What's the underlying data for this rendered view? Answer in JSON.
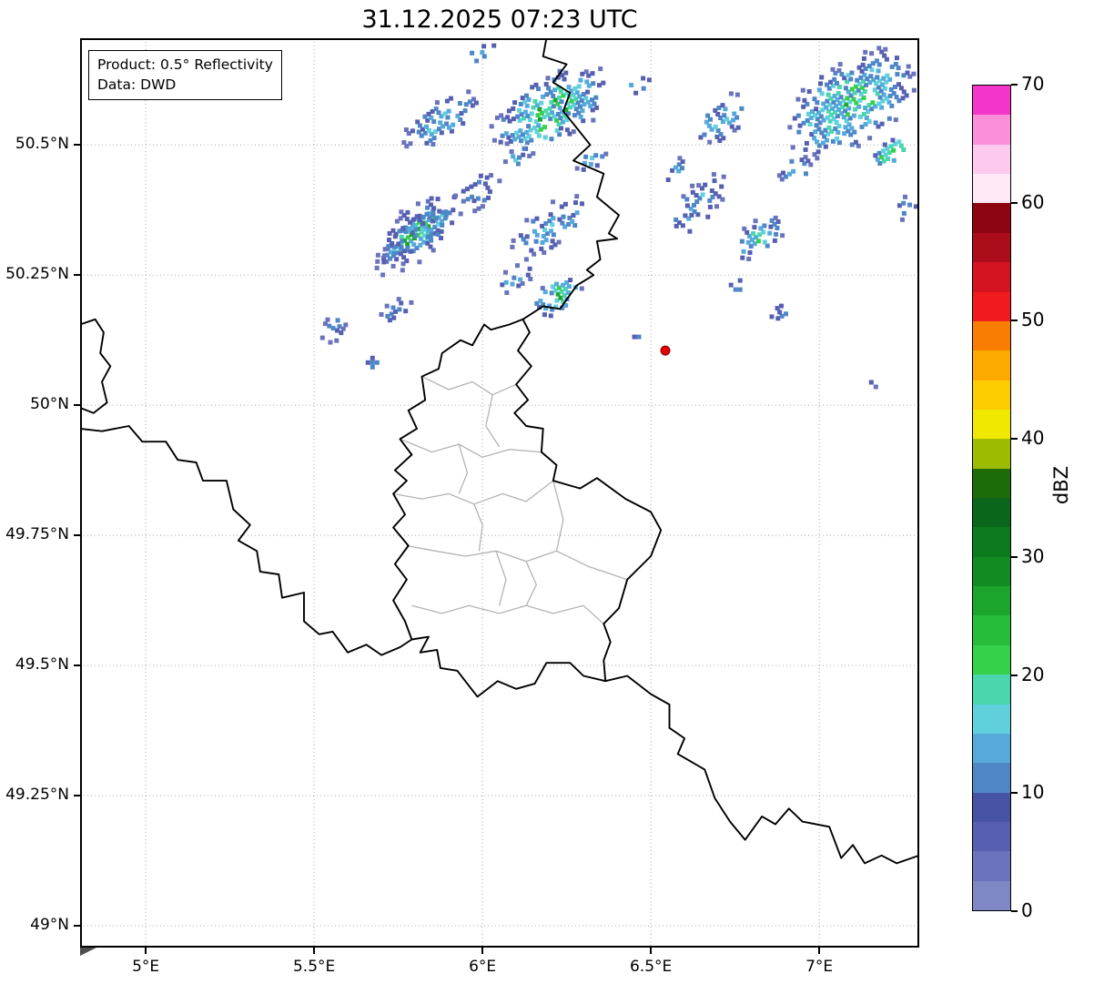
{
  "title": "31.12.2025 07:23 UTC",
  "info_box": {
    "lines": [
      "Product: 0.5° Reflectivity",
      "Data: DWD"
    ]
  },
  "colorbar": {
    "label": "dBZ",
    "min": 0,
    "max": 70,
    "ticks": [
      0,
      10,
      20,
      30,
      40,
      50,
      60,
      70
    ],
    "colors_bottom_to_top": [
      "#7f87c5",
      "#6a73bc",
      "#575fb1",
      "#4754a5",
      "#4f86c6",
      "#55aadb",
      "#5fd0dc",
      "#4bd6ae",
      "#36d14b",
      "#27bd3a",
      "#1ca52d",
      "#128b22",
      "#0d7a1e",
      "#0a661a",
      "#1e6b0a",
      "#9dbb00",
      "#f0e800",
      "#fccc00",
      "#fcaa00",
      "#f97e00",
      "#f11a1f",
      "#d41420",
      "#ad0d1a",
      "#8c0511",
      "#ffe9f7",
      "#fec9ee",
      "#fb8fd9",
      "#f336c9"
    ]
  },
  "colors": {
    "border": "#000000",
    "admin": "#b3b3b3",
    "grid": "#9a9a9a",
    "background": "#ffffff"
  },
  "map": {
    "extent": {
      "lon_min": 4.805,
      "lon_max": 7.297,
      "lat_min": 48.958,
      "lat_max": 50.705
    },
    "x_ticks": [
      {
        "value": 5.0,
        "label": "5°E"
      },
      {
        "value": 5.5,
        "label": "5.5°E"
      },
      {
        "value": 6.0,
        "label": "6°E"
      },
      {
        "value": 6.5,
        "label": "6.5°E"
      },
      {
        "value": 7.0,
        "label": "7°E"
      }
    ],
    "y_ticks": [
      {
        "value": 50.5,
        "label": "50.5°N"
      },
      {
        "value": 50.25,
        "label": "50.25°N"
      },
      {
        "value": 50.0,
        "label": "50°N"
      },
      {
        "value": 49.75,
        "label": "49.75°N"
      },
      {
        "value": 49.5,
        "label": "49.5°N"
      },
      {
        "value": 49.25,
        "label": "49.25°N"
      },
      {
        "value": 49.0,
        "label": "49°N"
      }
    ],
    "radar_site": {
      "lon": 6.543,
      "lat": 50.105,
      "color": "#e50000"
    },
    "borders_national": [
      [
        [
          6.19,
          50.705
        ],
        [
          6.18,
          50.67
        ],
        [
          6.25,
          50.655
        ],
        [
          6.21,
          50.62
        ],
        [
          6.26,
          50.6
        ],
        [
          6.24,
          50.565
        ],
        [
          6.32,
          50.5
        ],
        [
          6.27,
          50.47
        ],
        [
          6.36,
          50.445
        ],
        [
          6.34,
          50.4
        ],
        [
          6.405,
          50.365
        ],
        [
          6.375,
          50.33
        ],
        [
          6.4,
          50.32
        ],
        [
          6.34,
          50.315
        ],
        [
          6.35,
          50.28
        ],
        [
          6.31,
          50.26
        ],
        [
          6.33,
          50.25
        ],
        [
          6.28,
          50.23
        ],
        [
          6.23,
          50.185
        ],
        [
          6.18,
          50.19
        ],
        [
          6.12,
          50.165
        ]
      ],
      [
        [
          6.12,
          50.165
        ],
        [
          6.14,
          50.14
        ],
        [
          6.105,
          50.105
        ],
        [
          6.145,
          50.075
        ],
        [
          6.1,
          50.04
        ],
        [
          6.135,
          50.01
        ],
        [
          6.095,
          49.985
        ],
        [
          6.13,
          49.96
        ],
        [
          6.18,
          49.955
        ],
        [
          6.175,
          49.91
        ],
        [
          6.22,
          49.885
        ],
        [
          6.21,
          49.855
        ],
        [
          6.29,
          49.84
        ],
        [
          6.34,
          49.86
        ],
        [
          6.425,
          49.82
        ],
        [
          6.5,
          49.795
        ],
        [
          6.53,
          49.76
        ],
        [
          6.5,
          49.71
        ],
        [
          6.43,
          49.665
        ],
        [
          6.405,
          49.61
        ],
        [
          6.36,
          49.58
        ],
        [
          6.38,
          49.545
        ],
        [
          6.36,
          49.51
        ],
        [
          6.365,
          49.47
        ],
        [
          6.3,
          49.48
        ],
        [
          6.26,
          49.505
        ],
        [
          6.19,
          49.505
        ],
        [
          6.155,
          49.465
        ],
        [
          6.1,
          49.455
        ],
        [
          6.045,
          49.47
        ],
        [
          5.985,
          49.44
        ],
        [
          5.925,
          49.49
        ],
        [
          5.875,
          49.495
        ],
        [
          5.865,
          49.53
        ],
        [
          5.815,
          49.525
        ],
        [
          5.84,
          49.555
        ],
        [
          5.79,
          49.55
        ],
        [
          5.77,
          49.585
        ],
        [
          5.735,
          49.625
        ],
        [
          5.775,
          49.665
        ],
        [
          5.74,
          49.695
        ],
        [
          5.78,
          49.73
        ],
        [
          5.735,
          49.765
        ],
        [
          5.77,
          49.79
        ],
        [
          5.735,
          49.83
        ],
        [
          5.775,
          49.855
        ],
        [
          5.74,
          49.875
        ],
        [
          5.79,
          49.905
        ],
        [
          5.755,
          49.935
        ],
        [
          5.805,
          49.955
        ],
        [
          5.78,
          49.99
        ],
        [
          5.83,
          50.01
        ],
        [
          5.82,
          50.055
        ],
        [
          5.87,
          50.07
        ],
        [
          5.88,
          50.1
        ],
        [
          5.935,
          50.125
        ],
        [
          5.97,
          50.115
        ],
        [
          6.005,
          50.155
        ],
        [
          6.025,
          50.145
        ],
        [
          6.08,
          50.155
        ],
        [
          6.12,
          50.165
        ]
      ],
      [
        [
          6.365,
          49.47
        ],
        [
          6.43,
          49.48
        ],
        [
          6.5,
          49.445
        ],
        [
          6.555,
          49.425
        ],
        [
          6.555,
          49.38
        ],
        [
          6.6,
          49.36
        ],
        [
          6.58,
          49.33
        ],
        [
          6.66,
          49.3
        ],
        [
          6.69,
          49.245
        ],
        [
          6.735,
          49.2
        ],
        [
          6.78,
          49.165
        ],
        [
          6.83,
          49.21
        ],
        [
          6.87,
          49.195
        ],
        [
          6.91,
          49.225
        ],
        [
          6.95,
          49.2
        ],
        [
          7.03,
          49.19
        ],
        [
          7.065,
          49.13
        ],
        [
          7.1,
          49.155
        ],
        [
          7.135,
          49.12
        ],
        [
          7.185,
          49.135
        ],
        [
          7.23,
          49.12
        ],
        [
          7.297,
          49.135
        ]
      ],
      [
        [
          4.805,
          49.955
        ],
        [
          4.87,
          49.95
        ],
        [
          4.95,
          49.96
        ],
        [
          4.99,
          49.93
        ],
        [
          5.06,
          49.93
        ],
        [
          5.095,
          49.895
        ],
        [
          5.15,
          49.89
        ],
        [
          5.17,
          49.855
        ],
        [
          5.24,
          49.855
        ],
        [
          5.26,
          49.8
        ],
        [
          5.31,
          49.77
        ],
        [
          5.275,
          49.74
        ],
        [
          5.33,
          49.72
        ],
        [
          5.34,
          49.68
        ],
        [
          5.395,
          49.675
        ],
        [
          5.405,
          49.63
        ],
        [
          5.47,
          49.64
        ],
        [
          5.47,
          49.585
        ],
        [
          5.515,
          49.56
        ],
        [
          5.555,
          49.565
        ],
        [
          5.6,
          49.525
        ],
        [
          5.655,
          49.54
        ],
        [
          5.7,
          49.52
        ],
        [
          5.755,
          49.535
        ],
        [
          5.79,
          49.55
        ]
      ],
      [
        [
          4.805,
          50.155
        ],
        [
          4.85,
          50.165
        ],
        [
          4.875,
          50.14
        ],
        [
          4.865,
          50.1
        ],
        [
          4.895,
          50.075
        ],
        [
          4.87,
          50.045
        ],
        [
          4.885,
          50.005
        ],
        [
          4.845,
          49.985
        ],
        [
          4.805,
          49.995
        ]
      ]
    ],
    "borders_admin": [
      [
        [
          5.82,
          50.055
        ],
        [
          5.9,
          50.03
        ],
        [
          5.97,
          50.045
        ],
        [
          6.03,
          50.02
        ],
        [
          6.1,
          50.04
        ]
      ],
      [
        [
          5.755,
          49.935
        ],
        [
          5.85,
          49.91
        ],
        [
          5.93,
          49.925
        ],
        [
          6.0,
          49.9
        ],
        [
          6.08,
          49.915
        ],
        [
          6.175,
          49.91
        ]
      ],
      [
        [
          6.03,
          50.02
        ],
        [
          6.01,
          49.96
        ],
        [
          6.05,
          49.92
        ]
      ],
      [
        [
          5.735,
          49.83
        ],
        [
          5.82,
          49.82
        ],
        [
          5.9,
          49.83
        ],
        [
          5.975,
          49.81
        ],
        [
          6.06,
          49.83
        ],
        [
          6.13,
          49.815
        ],
        [
          6.21,
          49.855
        ]
      ],
      [
        [
          5.93,
          49.925
        ],
        [
          5.955,
          49.87
        ],
        [
          5.93,
          49.83
        ]
      ],
      [
        [
          5.775,
          49.73
        ],
        [
          5.86,
          49.72
        ],
        [
          5.95,
          49.71
        ],
        [
          6.04,
          49.72
        ],
        [
          6.13,
          49.7
        ],
        [
          6.22,
          49.72
        ],
        [
          6.315,
          49.69
        ],
        [
          6.43,
          49.665
        ]
      ],
      [
        [
          5.975,
          49.81
        ],
        [
          6.0,
          49.77
        ],
        [
          5.99,
          49.72
        ]
      ],
      [
        [
          6.22,
          49.72
        ],
        [
          6.24,
          49.78
        ],
        [
          6.21,
          49.855
        ]
      ],
      [
        [
          5.79,
          49.615
        ],
        [
          5.88,
          49.6
        ],
        [
          5.96,
          49.615
        ],
        [
          6.05,
          49.6
        ],
        [
          6.13,
          49.615
        ],
        [
          6.21,
          49.6
        ],
        [
          6.3,
          49.615
        ],
        [
          6.36,
          49.58
        ]
      ],
      [
        [
          6.04,
          49.72
        ],
        [
          6.07,
          49.665
        ],
        [
          6.05,
          49.615
        ]
      ],
      [
        [
          6.13,
          49.7
        ],
        [
          6.16,
          49.655
        ],
        [
          6.13,
          49.615
        ]
      ]
    ],
    "echo_palette": [
      "#6a73bc",
      "#575fb1",
      "#4f86c6",
      "#55aadb",
      "#5fd0dc",
      "#4bd6ae",
      "#36d14b",
      "#1ca52d"
    ],
    "echo_clusters": [
      {
        "lon": 5.884,
        "lat": 50.549,
        "w": 0.297,
        "h": 0.073,
        "rot": 35,
        "intensity": 0.5,
        "density": 0.55,
        "seed": 11
      },
      {
        "lon": 6.203,
        "lat": 50.566,
        "w": 0.405,
        "h": 0.131,
        "rot": 30,
        "intensity": 0.75,
        "density": 0.7,
        "seed": 12
      },
      {
        "lon": 6.459,
        "lat": 50.613,
        "w": 0.108,
        "h": 0.038,
        "rot": 30,
        "intensity": 0.45,
        "density": 0.5,
        "seed": 13
      },
      {
        "lon": 7.095,
        "lat": 50.579,
        "w": 0.459,
        "h": 0.166,
        "rot": 35,
        "intensity": 0.7,
        "density": 0.65,
        "seed": 14
      },
      {
        "lon": 7.216,
        "lat": 50.486,
        "w": 0.149,
        "h": 0.049,
        "rot": 30,
        "intensity": 0.9,
        "density": 0.8,
        "seed": 15
      },
      {
        "lon": 5.805,
        "lat": 50.329,
        "w": 0.27,
        "h": 0.059,
        "rot": 40,
        "intensity": 0.95,
        "density": 0.9,
        "seed": 16
      },
      {
        "lon": 5.816,
        "lat": 50.334,
        "w": 0.365,
        "h": 0.105,
        "rot": 40,
        "intensity": 0.4,
        "density": 0.45,
        "seed": 17
      },
      {
        "lon": 5.992,
        "lat": 50.409,
        "w": 0.189,
        "h": 0.07,
        "rot": 30,
        "intensity": 0.35,
        "density": 0.45,
        "seed": 18
      },
      {
        "lon": 6.203,
        "lat": 50.343,
        "w": 0.284,
        "h": 0.084,
        "rot": 35,
        "intensity": 0.5,
        "density": 0.5,
        "seed": 19
      },
      {
        "lon": 6.222,
        "lat": 50.208,
        "w": 0.176,
        "h": 0.063,
        "rot": 35,
        "intensity": 0.8,
        "density": 0.7,
        "seed": 20
      },
      {
        "lon": 6.095,
        "lat": 50.243,
        "w": 0.135,
        "h": 0.049,
        "rot": 30,
        "intensity": 0.4,
        "density": 0.5,
        "seed": 21
      },
      {
        "lon": 5.559,
        "lat": 50.147,
        "w": 0.108,
        "h": 0.049,
        "rot": 60,
        "intensity": 0.35,
        "density": 0.5,
        "seed": 22
      },
      {
        "lon": 5.743,
        "lat": 50.182,
        "w": 0.114,
        "h": 0.038,
        "rot": 30,
        "intensity": 0.4,
        "density": 0.5,
        "seed": 23
      },
      {
        "lon": 5.676,
        "lat": 50.08,
        "w": 0.059,
        "h": 0.031,
        "rot": 0,
        "intensity": 0.3,
        "density": 0.6,
        "seed": 24
      },
      {
        "lon": 6.641,
        "lat": 50.383,
        "w": 0.257,
        "h": 0.073,
        "rot": 50,
        "intensity": 0.45,
        "density": 0.45,
        "seed": 25
      },
      {
        "lon": 6.816,
        "lat": 50.322,
        "w": 0.195,
        "h": 0.066,
        "rot": 35,
        "intensity": 0.65,
        "density": 0.6,
        "seed": 26
      },
      {
        "lon": 6.932,
        "lat": 50.453,
        "w": 0.13,
        "h": 0.052,
        "rot": 35,
        "intensity": 0.45,
        "density": 0.5,
        "seed": 27
      },
      {
        "lon": 7.262,
        "lat": 50.378,
        "w": 0.086,
        "h": 0.045,
        "rot": 30,
        "intensity": 0.5,
        "density": 0.55,
        "seed": 28
      },
      {
        "lon": 6.757,
        "lat": 50.229,
        "w": 0.065,
        "h": 0.031,
        "rot": 0,
        "intensity": 0.35,
        "density": 0.55,
        "seed": 29
      },
      {
        "lon": 6.884,
        "lat": 50.177,
        "w": 0.081,
        "h": 0.031,
        "rot": 30,
        "intensity": 0.4,
        "density": 0.5,
        "seed": 30
      },
      {
        "lon": 6.459,
        "lat": 50.133,
        "w": 0.043,
        "h": 0.021,
        "rot": 0,
        "intensity": 0.3,
        "density": 0.6,
        "seed": 31
      },
      {
        "lon": 7.149,
        "lat": 50.037,
        "w": 0.043,
        "h": 0.021,
        "rot": 0,
        "intensity": 0.35,
        "density": 0.6,
        "seed": 32
      },
      {
        "lon": 6.005,
        "lat": 50.68,
        "w": 0.122,
        "h": 0.035,
        "rot": 30,
        "intensity": 0.5,
        "density": 0.5,
        "seed": 33
      },
      {
        "lon": 6.716,
        "lat": 50.551,
        "w": 0.23,
        "h": 0.079,
        "rot": 35,
        "intensity": 0.5,
        "density": 0.45,
        "seed": 34
      },
      {
        "lon": 6.581,
        "lat": 50.451,
        "w": 0.108,
        "h": 0.038,
        "rot": 40,
        "intensity": 0.4,
        "density": 0.45,
        "seed": 35
      },
      {
        "lon": 6.324,
        "lat": 50.469,
        "w": 0.122,
        "h": 0.044,
        "rot": 35,
        "intensity": 0.45,
        "density": 0.45,
        "seed": 36
      },
      {
        "lon": 6.108,
        "lat": 50.477,
        "w": 0.108,
        "h": 0.038,
        "rot": 35,
        "intensity": 0.45,
        "density": 0.5,
        "seed": 37
      }
    ]
  }
}
